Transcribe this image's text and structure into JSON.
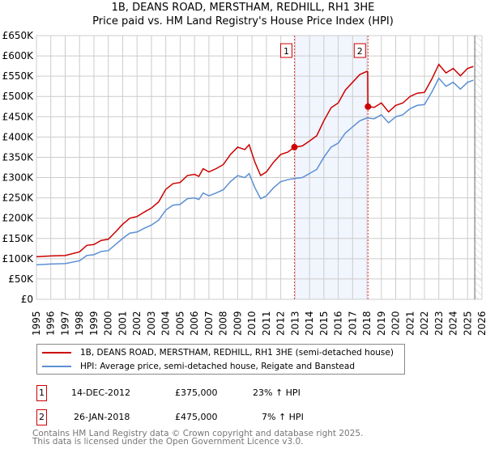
{
  "chart_data": {
    "type": "line",
    "title": "1B, DEANS ROAD, MERSTHAM, REDHILL, RH1 3HE",
    "subtitle": "Price paid vs. HM Land Registry's House Price Index (HPI)",
    "ylim": [
      0,
      650000
    ],
    "xlim": [
      1995,
      2026
    ],
    "yticks": [
      0,
      50000,
      100000,
      150000,
      200000,
      250000,
      300000,
      350000,
      400000,
      450000,
      500000,
      550000,
      600000,
      650000
    ],
    "ytick_labels": [
      "£0",
      "£50K",
      "£100K",
      "£150K",
      "£200K",
      "£250K",
      "£300K",
      "£350K",
      "£400K",
      "£450K",
      "£500K",
      "£550K",
      "£600K",
      "£650K"
    ],
    "xticks": [
      "1995",
      "1996",
      "1997",
      "1998",
      "1999",
      "2000",
      "2001",
      "2002",
      "2003",
      "2004",
      "2005",
      "2006",
      "2007",
      "2008",
      "2009",
      "2010",
      "2011",
      "2012",
      "2013",
      "2014",
      "2015",
      "2016",
      "2017",
      "2018",
      "2019",
      "2020",
      "2021",
      "2022",
      "2023",
      "2024",
      "2025",
      "2026"
    ],
    "grid": true,
    "series": [
      {
        "name": "1B, DEANS ROAD, MERSTHAM, REDHILL, RH1 3HE (semi-detached house)",
        "color": "#cc0000",
        "x": [
          1995,
          1996,
          1997,
          1998,
          1998.5,
          1999,
          1999.5,
          2000,
          2000.5,
          2001,
          2001.5,
          2002,
          2002.5,
          2003,
          2003.5,
          2004,
          2004.5,
          2005,
          2005.5,
          2006,
          2006.3,
          2006.6,
          2007,
          2007.5,
          2008,
          2008.5,
          2009,
          2009.5,
          2009.8,
          2010.2,
          2010.6,
          2011,
          2011.5,
          2012,
          2012.5,
          2012.95,
          2013,
          2013.5,
          2014,
          2014.5,
          2015,
          2015.5,
          2016,
          2016.5,
          2017,
          2017.5,
          2018,
          2018.05,
          2018.07,
          2018.5,
          2019,
          2019.5,
          2020,
          2020.5,
          2021,
          2021.5,
          2022,
          2022.5,
          2023,
          2023.5,
          2024,
          2024.5,
          2025,
          2025.4
        ],
        "y": [
          105000,
          107000,
          108000,
          117000,
          133000,
          135000,
          145000,
          148000,
          166000,
          185000,
          200000,
          204000,
          215000,
          225000,
          240000,
          271000,
          285000,
          288000,
          305000,
          308000,
          303000,
          322000,
          314000,
          322000,
          332000,
          357000,
          375000,
          369000,
          381000,
          338000,
          305000,
          314000,
          338000,
          357000,
          363000,
          375000,
          375000,
          378000,
          390000,
          403000,
          440000,
          472000,
          484000,
          516000,
          535000,
          554000,
          562000,
          560000,
          475000,
          473000,
          484000,
          462000,
          478000,
          484000,
          500000,
          508000,
          510000,
          542000,
          579000,
          558000,
          569000,
          551000,
          569000,
          574000
        ]
      },
      {
        "name": "HPI: Average price, semi-detached house, Reigate and Banstead",
        "color": "#5b8fd4",
        "x": [
          1995,
          1996,
          1997,
          1998,
          1998.5,
          1999,
          1999.5,
          2000,
          2000.5,
          2001,
          2001.5,
          2002,
          2002.5,
          2003,
          2003.5,
          2004,
          2004.5,
          2005,
          2005.5,
          2006,
          2006.3,
          2006.6,
          2007,
          2007.5,
          2008,
          2008.5,
          2009,
          2009.5,
          2009.8,
          2010.2,
          2010.6,
          2011,
          2011.5,
          2012,
          2012.5,
          2013,
          2013.5,
          2014,
          2014.5,
          2015,
          2015.5,
          2016,
          2016.5,
          2017,
          2017.5,
          2018,
          2018.5,
          2019,
          2019.5,
          2020,
          2020.5,
          2021,
          2021.5,
          2022,
          2022.5,
          2023,
          2023.5,
          2024,
          2024.5,
          2025,
          2025.4
        ],
        "y": [
          85000,
          87000,
          88000,
          95000,
          108000,
          110000,
          118000,
          120000,
          135000,
          150000,
          163000,
          166000,
          175000,
          183000,
          195000,
          220000,
          232000,
          234000,
          248000,
          250000,
          246000,
          262000,
          255000,
          262000,
          270000,
          290000,
          305000,
          300000,
          310000,
          275000,
          248000,
          255000,
          275000,
          290000,
          295000,
          298000,
          300000,
          310000,
          320000,
          350000,
          375000,
          385000,
          410000,
          425000,
          440000,
          447000,
          445000,
          455000,
          435000,
          450000,
          455000,
          470000,
          478000,
          480000,
          510000,
          545000,
          525000,
          535000,
          518000,
          535000,
          540000
        ]
      }
    ],
    "sales": [
      {
        "label": "1",
        "x": 2012.95,
        "y": 375000,
        "date": "14-DEC-2012",
        "price": "£375,000",
        "hpi": "23% ↑ HPI"
      },
      {
        "label": "2",
        "x": 2018.07,
        "y": 475000,
        "date": "26-JAN-2018",
        "price": "£475,000",
        "hpi": "7% ↑ HPI"
      }
    ],
    "forecast_from": 2025.5,
    "legend_placement": "below"
  },
  "footer": {
    "line1": "Contains HM Land Registry data © Crown copyright and database right 2025.",
    "line2": "This data is licensed under the Open Government Licence v3.0."
  }
}
